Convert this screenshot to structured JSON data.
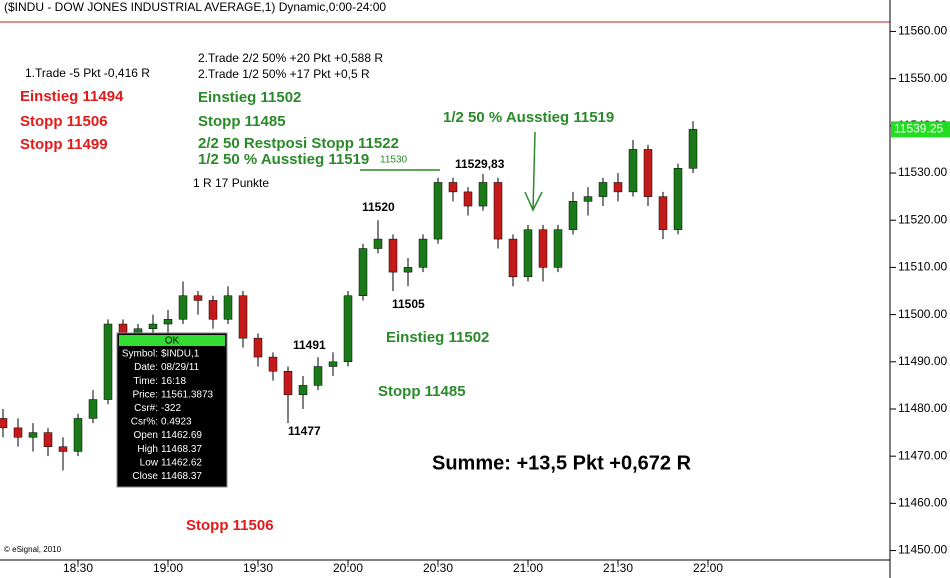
{
  "chart_data": {
    "type": "candlestick",
    "title": "($INDU - DOW JONES INDUSTRIAL AVERAGE,1) Dynamic,0:00-24:00",
    "credit": "© eSignal, 2010",
    "up_color": "#1a7a1a",
    "down_color": "#c41a1a",
    "wick_color": "#000000",
    "x": [
      "18:05",
      "18:10",
      "18:15",
      "18:20",
      "18:25",
      "18:30",
      "18:35",
      "18:40",
      "18:45",
      "18:50",
      "18:55",
      "19:00",
      "19:05",
      "19:10",
      "19:15",
      "19:20",
      "19:25",
      "19:30",
      "19:35",
      "19:40",
      "19:45",
      "19:50",
      "19:55",
      "20:00",
      "20:05",
      "20:10",
      "20:15",
      "20:20",
      "20:25",
      "20:30",
      "20:35",
      "20:40",
      "20:45",
      "20:50",
      "20:55",
      "21:00",
      "21:05",
      "21:10",
      "21:15",
      "21:20",
      "21:25",
      "21:30",
      "21:35",
      "21:40",
      "21:45",
      "21:50",
      "21:55"
    ],
    "open": [
      11478,
      11476,
      11474,
      11475,
      11472,
      11471,
      11478,
      11482,
      11498,
      11495,
      11497,
      11498,
      11499,
      11504,
      11503,
      11499,
      11504,
      11495,
      11491,
      11488,
      11483,
      11485,
      11489,
      11490,
      11504,
      11514,
      11516,
      11509,
      11510,
      11516,
      11528,
      11526,
      11523,
      11528,
      11516,
      11508,
      11518,
      11510,
      11518,
      11524,
      11525,
      11528,
      11526,
      11535,
      11525,
      11518,
      11531
    ],
    "high": [
      11480,
      11478,
      11477,
      11476,
      11474,
      11479,
      11484,
      11499,
      11499,
      11498,
      11500,
      11501,
      11507,
      11505,
      11504,
      11506,
      11505,
      11496,
      11492,
      11489,
      11487,
      11491,
      11492,
      11505,
      11515,
      11520,
      11517,
      11512,
      11517,
      11529,
      11529,
      11527,
      11529.83,
      11529,
      11517,
      11519,
      11519,
      11519,
      11526,
      11527,
      11529,
      11530,
      11537,
      11536,
      11526,
      11532,
      11541
    ],
    "low": [
      11474,
      11472,
      11471,
      11470,
      11467,
      11470,
      11477,
      11481,
      11493,
      11492,
      11495,
      11496,
      11498,
      11500,
      11497,
      11498,
      11493,
      11489,
      11486,
      11477,
      11480,
      11484,
      11487,
      11489,
      11503,
      11513,
      11505,
      11506,
      11509,
      11515,
      11524,
      11521,
      11522,
      11514,
      11506,
      11507,
      11507,
      11509,
      11517,
      11521,
      11523,
      11524,
      11525,
      11523,
      11516,
      11517,
      11530
    ],
    "close": [
      11476,
      11474,
      11475,
      11472,
      11471,
      11478,
      11482,
      11498,
      11495,
      11497,
      11498,
      11499,
      11504,
      11503,
      11499,
      11504,
      11495,
      11491,
      11488,
      11483,
      11485,
      11489,
      11490,
      11504,
      11514,
      11516,
      11509,
      11510,
      11516,
      11528,
      11526,
      11523,
      11528,
      11516,
      11508,
      11518,
      11510,
      11518,
      11524,
      11525,
      11528,
      11526,
      11535,
      11525,
      11518,
      11531,
      11539.25
    ],
    "last_price": {
      "value": 11539.25,
      "label": "11539.25",
      "color": "#22dd22"
    },
    "ylim": [
      11448,
      11562
    ],
    "yticks": [
      {
        "value": 11450,
        "label": "11450.00"
      },
      {
        "value": 11460,
        "label": "11460.00"
      },
      {
        "value": 11470,
        "label": "11470.00"
      },
      {
        "value": 11480,
        "label": "11480.00"
      },
      {
        "value": 11490,
        "label": "11490.00"
      },
      {
        "value": 11500,
        "label": "11500.00"
      },
      {
        "value": 11510,
        "label": "11510.00"
      },
      {
        "value": 11520,
        "label": "11520.00"
      },
      {
        "value": 11530,
        "label": "11530.00"
      },
      {
        "value": 11540,
        "label": "11540.00"
      },
      {
        "value": 11550,
        "label": "11550.00"
      },
      {
        "value": 11560,
        "label": "11560.00"
      }
    ],
    "xticks": [
      "18:30",
      "19:00",
      "19:30",
      "20:00",
      "20:30",
      "21:00",
      "21:30",
      "22:00"
    ],
    "annotations": [
      {
        "text": "1.Trade -5 Pkt -0,416 R",
        "color": "#000000"
      },
      {
        "text": "Einstieg 11494",
        "color": "#e31a1a"
      },
      {
        "text": "Stopp 11506",
        "color": "#e31a1a"
      },
      {
        "text": "Stopp 11499",
        "color": "#e31a1a"
      },
      {
        "text": "2.Trade 2/2 50% +20 Pkt +0,588 R",
        "color": "#000000"
      },
      {
        "text": "2.Trade 1/2 50% +17 Pkt +0,5 R",
        "color": "#000000"
      },
      {
        "text": "Einstieg 11502",
        "color": "#2a8a2a"
      },
      {
        "text": "Stopp 11485",
        "color": "#2a8a2a"
      },
      {
        "text": "2/2 50 Restposi Stopp 11522",
        "color": "#2a8a2a"
      },
      {
        "text": "1/2 50 % Ausstieg 11519",
        "color": "#2a8a2a"
      },
      {
        "text": "11530",
        "color": "#2a8a2a"
      },
      {
        "text": "1 R 17 Punkte",
        "color": "#000000"
      },
      {
        "text": "1/2 50 % Ausstieg 11519",
        "color": "#2a8a2a"
      },
      {
        "text": "11529,83",
        "color": "#000000"
      },
      {
        "text": "11520",
        "color": "#000000"
      },
      {
        "text": "11505",
        "color": "#000000"
      },
      {
        "text": "11491",
        "color": "#000000"
      },
      {
        "text": "11477",
        "color": "#000000"
      },
      {
        "text": "Einstieg 11502",
        "color": "#2a8a2a"
      },
      {
        "text": "Stopp 11485",
        "color": "#2a8a2a"
      },
      {
        "text": "Summe: +13,5 Pkt +0,672 R",
        "color": "#000000"
      },
      {
        "text": "Stopp 11506",
        "color": "#e31a1a"
      }
    ],
    "info_box": {
      "header": "OK",
      "rows": [
        [
          "Symbol:",
          "$INDU,1"
        ],
        [
          "Date:",
          "08/29/11"
        ],
        [
          "Time:",
          "16:18"
        ],
        [
          "Price:",
          "11561.3873"
        ],
        [
          "Csr#:",
          "-322"
        ],
        [
          "Csr%:",
          "0.4923"
        ],
        [
          "Open",
          "11462.69"
        ],
        [
          "High",
          "11468.37"
        ],
        [
          "Low",
          "11462.62"
        ],
        [
          "Close",
          "11468.37"
        ]
      ]
    }
  }
}
